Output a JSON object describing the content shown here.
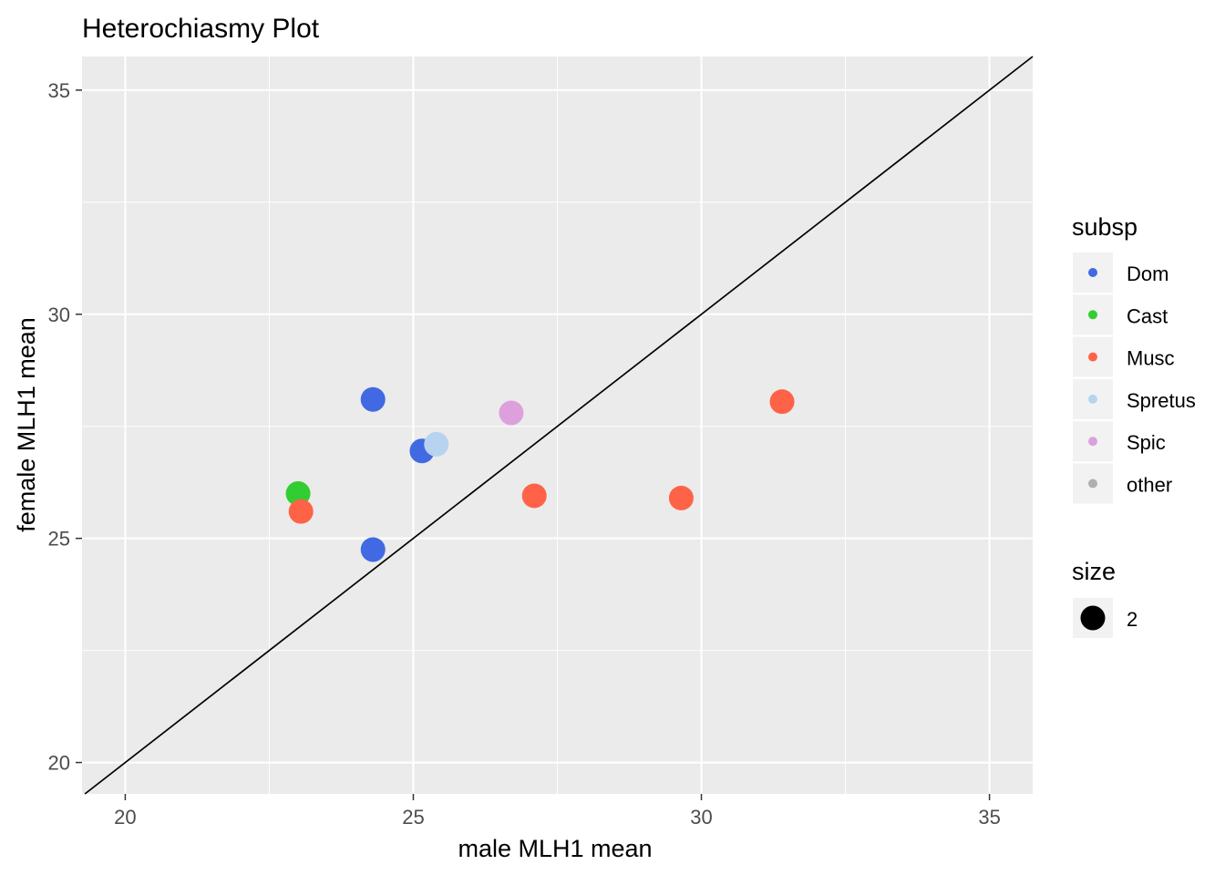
{
  "chart_data": {
    "type": "scatter",
    "title": "Heterochiasmy Plot",
    "xlabel": "male MLH1 mean",
    "ylabel": "female MLH1 mean",
    "xlim": [
      19.25,
      35.75
    ],
    "ylim": [
      19.3,
      35.75
    ],
    "x_ticks": [
      20,
      25,
      30,
      35
    ],
    "y_ticks": [
      20,
      25,
      30,
      35
    ],
    "grid": true,
    "reference_line": {
      "slope": 1,
      "intercept": 0,
      "color": "#000000"
    },
    "legend_placement": "right",
    "series": [
      {
        "name": "Dom",
        "color": "#4169E1",
        "points": [
          [
            24.3,
            28.1
          ],
          [
            25.15,
            26.95
          ],
          [
            24.3,
            24.75
          ]
        ]
      },
      {
        "name": "Cast",
        "color": "#32CD32",
        "points": [
          [
            23.0,
            26.0
          ]
        ]
      },
      {
        "name": "Musc",
        "color": "#FF6347",
        "points": [
          [
            23.05,
            25.6
          ],
          [
            27.1,
            25.95
          ],
          [
            29.65,
            25.9
          ],
          [
            31.4,
            28.05
          ]
        ]
      },
      {
        "name": "Spretus",
        "color": "#B8D3F0",
        "points": [
          [
            25.4,
            27.1
          ]
        ]
      },
      {
        "name": "Spic",
        "color": "#DDA0DD",
        "points": [
          [
            26.7,
            27.8
          ]
        ]
      },
      {
        "name": "other",
        "color": "#B0B0B0",
        "points": []
      }
    ],
    "legends": [
      {
        "title": "subsp",
        "keys": [
          "Dom",
          "Cast",
          "Musc",
          "Spretus",
          "Spic",
          "other"
        ]
      },
      {
        "title": "size",
        "keys": [
          "2"
        ]
      }
    ]
  }
}
